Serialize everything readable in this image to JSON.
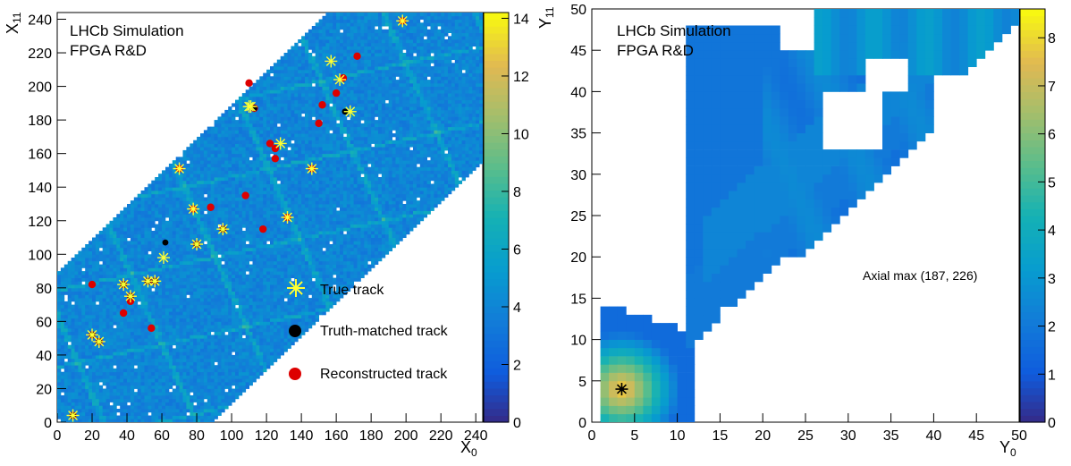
{
  "chart_data": [
    {
      "type": "heatmap",
      "title_lines": [
        "LHCb Simulation",
        "FPGA R&D"
      ],
      "xlabel_main": "X",
      "xlabel_sub": "0",
      "ylabel_main": "X",
      "ylabel_sub": "11",
      "xlim": [
        0,
        244
      ],
      "ylim": [
        0,
        244
      ],
      "x_ticks": [
        0,
        20,
        40,
        60,
        80,
        100,
        120,
        140,
        160,
        180,
        200,
        220,
        240
      ],
      "y_ticks": [
        0,
        20,
        40,
        60,
        80,
        100,
        120,
        140,
        160,
        180,
        200,
        220,
        240
      ],
      "colorbar": {
        "min": 0,
        "max": 14.2,
        "ticks": [
          0,
          2,
          4,
          6,
          8,
          10,
          12,
          14
        ]
      },
      "band": {
        "description": "filled diagonal band",
        "lower_offset": -88,
        "upper_offset": 88
      },
      "legend": [
        {
          "label": "True track",
          "marker": "star",
          "color": "#ffff33"
        },
        {
          "label": "Truth-matched track",
          "marker": "circle",
          "color": "#000000"
        },
        {
          "label": "Reconstructed track",
          "marker": "circle",
          "color": "#dd0000"
        }
      ],
      "true_tracks": [
        [
          9,
          4
        ],
        [
          20,
          52
        ],
        [
          24,
          48
        ],
        [
          38,
          82
        ],
        [
          42,
          75
        ],
        [
          52,
          84
        ],
        [
          56,
          84
        ],
        [
          61,
          98
        ],
        [
          70,
          151
        ],
        [
          78,
          127
        ],
        [
          80,
          106
        ],
        [
          95,
          115
        ],
        [
          110,
          188
        ],
        [
          111,
          188
        ],
        [
          128,
          166
        ],
        [
          132,
          122
        ],
        [
          146,
          151
        ],
        [
          157,
          215
        ],
        [
          162,
          204
        ],
        [
          168,
          185
        ],
        [
          198,
          239
        ]
      ],
      "truth_matched_tracks": [
        [
          9,
          4
        ],
        [
          20,
          52
        ],
        [
          24,
          48
        ],
        [
          38,
          82
        ],
        [
          42,
          75
        ],
        [
          52,
          84
        ],
        [
          56,
          84
        ],
        [
          62,
          107
        ],
        [
          80,
          106
        ],
        [
          95,
          115
        ],
        [
          113,
          187
        ],
        [
          165,
          185
        ]
      ],
      "reconstructed_tracks": [
        [
          9,
          4
        ],
        [
          20,
          52
        ],
        [
          24,
          48
        ],
        [
          38,
          82
        ],
        [
          42,
          75
        ],
        [
          52,
          84
        ],
        [
          56,
          84
        ],
        [
          20,
          82
        ],
        [
          38,
          65
        ],
        [
          42,
          72
        ],
        [
          54,
          56
        ],
        [
          70,
          151
        ],
        [
          78,
          127
        ],
        [
          80,
          106
        ],
        [
          88,
          128
        ],
        [
          95,
          115
        ],
        [
          108,
          135
        ],
        [
          110,
          202
        ],
        [
          113,
          187
        ],
        [
          122,
          166
        ],
        [
          125,
          163
        ],
        [
          125,
          157
        ],
        [
          118,
          115
        ],
        [
          132,
          122
        ],
        [
          146,
          151
        ],
        [
          150,
          178
        ],
        [
          152,
          189
        ],
        [
          160,
          196
        ],
        [
          164,
          205
        ],
        [
          172,
          218
        ],
        [
          198,
          239
        ]
      ]
    },
    {
      "type": "heatmap",
      "title_lines": [
        "LHCb Simulation",
        "FPGA R&D"
      ],
      "annotation": "Axial max (187, 226)",
      "xlabel_main": "Y",
      "xlabel_sub": "0",
      "ylabel_main": "Y",
      "ylabel_sub": "11",
      "xlim": [
        0,
        50
      ],
      "ylim": [
        0,
        50
      ],
      "x_ticks": [
        0,
        5,
        10,
        15,
        20,
        25,
        30,
        35,
        40,
        45,
        50
      ],
      "y_ticks": [
        0,
        5,
        10,
        15,
        20,
        25,
        30,
        35,
        40,
        45,
        50
      ],
      "colorbar": {
        "min": 0,
        "max": 8.6,
        "ticks": [
          0,
          1,
          2,
          3,
          4,
          5,
          6,
          7,
          8
        ]
      },
      "peak": [
        3.5,
        4.0
      ],
      "marker": [
        3.5,
        4.0
      ]
    }
  ]
}
